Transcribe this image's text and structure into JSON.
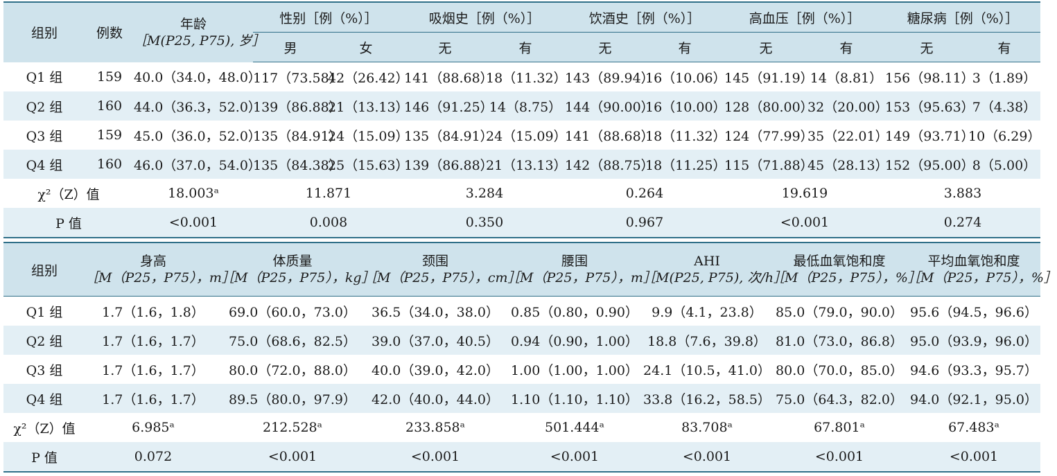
{
  "table1": {
    "headers": {
      "group": "组别",
      "count": "例数",
      "age_line1": "年龄",
      "age_line2": "［M(P25, P75), 岁］",
      "sex": "性别［例（%）］",
      "smoking": "吸烟史［例（%）］",
      "drinking": "饮酒史［例（%）］",
      "hypertension": "高血压［例（%）］",
      "diabetes": "糖尿病［例（%）］",
      "male": "男",
      "female": "女",
      "no1": "无",
      "yes1": "有",
      "no2": "无",
      "yes2": "有",
      "no3": "无",
      "yes3": "有",
      "no4": "无",
      "yes4": "有"
    },
    "rows": [
      [
        "Q1 组",
        "159",
        "40.0（34.0，48.0）",
        "117（73.58）",
        "42（26.42）",
        "141（88.68）",
        "18（11.32）",
        "143（89.94）",
        "16（10.06）",
        "145（91.19）",
        "14（8.81）",
        "156（98.11）",
        "3（1.89）"
      ],
      [
        "Q2 组",
        "160",
        "44.0（36.3，52.0）",
        "139（86.88）",
        "21（13.13）",
        "146（91.25）",
        "14（8.75）",
        "144（90.00）",
        "16（10.00）",
        "128（80.00）",
        "32（20.00）",
        "153（95.63）",
        "7（4.38）"
      ],
      [
        "Q3 组",
        "159",
        "45.0（36.0，52.0）",
        "135（84.91）",
        "24（15.09）",
        "135（84.91）",
        "24（15.09）",
        "141（88.68）",
        "18（11.32）",
        "124（77.99）",
        "35（22.01）",
        "149（93.71）",
        "10（6.29）"
      ],
      [
        "Q4 组",
        "160",
        "46.0（37.0，54.0）",
        "135（84.38）",
        "25（15.63）",
        "139（86.88）",
        "21（13.13）",
        "142（88.75）",
        "18（11.25）",
        "115（71.88）",
        "45（28.13）",
        "152（95.00）",
        "8（5.00）"
      ]
    ],
    "chi_label": "χ²（Z）值",
    "chi_values": [
      "18.003ᵃ",
      "11.871",
      "3.284",
      "0.264",
      "19.619",
      "3.883"
    ],
    "p_label": "P 值",
    "p_values": [
      "<0.001",
      "0.008",
      "0.350",
      "0.967",
      "<0.001",
      "0.274"
    ]
  },
  "table2": {
    "headers": {
      "group": "组别",
      "height": "身高",
      "height_unit": "［M（P25，P75），m］",
      "weight": "体质量",
      "weight_unit": "［M（P25，P75），kg］",
      "neck": "颈围",
      "neck_unit": "［M（P25，P75），cm］",
      "waist": "腰围",
      "waist_unit": "［M（P25，P75），m］",
      "ahi": "AHI",
      "ahi_unit": "［M(P25, P75), 次/h］",
      "min_spo2": "最低血氧饱和度",
      "min_spo2_unit": "［M（P25，P75），%］",
      "mean_spo2": "平均血氧饱和度",
      "mean_spo2_unit": "［M（P25，P75），%］"
    },
    "rows": [
      [
        "Q1 组",
        "1.7（1.6，1.8）",
        "69.0（60.0，73.0）",
        "36.5（34.0，38.0）",
        "0.85（0.80，0.90）",
        "9.9（4.1，23.8）",
        "85.0（79.0，90.0）",
        "95.6（94.5，96.6）"
      ],
      [
        "Q2 组",
        "1.7（1.6，1.7）",
        "75.0（68.6，82.5）",
        "39.0（37.0，40.5）",
        "0.94（0.90，1.00）",
        "18.8（7.6，39.8）",
        "81.0（73.0，86.8）",
        "95.0（93.9，96.0）"
      ],
      [
        "Q3 组",
        "1.7（1.6，1.7）",
        "80.0（72.0，88.0）",
        "40.0（39.0，42.0）",
        "1.00（1.00，1.00）",
        "24.1（10.5，41.0）",
        "80.0（70.0，85.0）",
        "94.6（93.3，95.7）"
      ],
      [
        "Q4 组",
        "1.7（1.6，1.7）",
        "89.5（80.0，97.9）",
        "42.0（40.0，44.0）",
        "1.10（1.10，1.10）",
        "33.8（16.2，58.5）",
        "75.0（64.3，82.0）",
        "94.0（92.1，95.0）"
      ]
    ],
    "chi_label": "χ²（Z）值",
    "chi_values": [
      "6.985ᵃ",
      "212.528ᵃ",
      "233.858ᵃ",
      "501.444ᵃ",
      "83.708ᵃ",
      "67.801ᵃ",
      "67.483ᵃ"
    ],
    "p_label": "P 值",
    "p_values": [
      "0.072",
      "<0.001",
      "<0.001",
      "<0.001",
      "<0.001",
      "<0.001",
      "<0.001"
    ]
  }
}
